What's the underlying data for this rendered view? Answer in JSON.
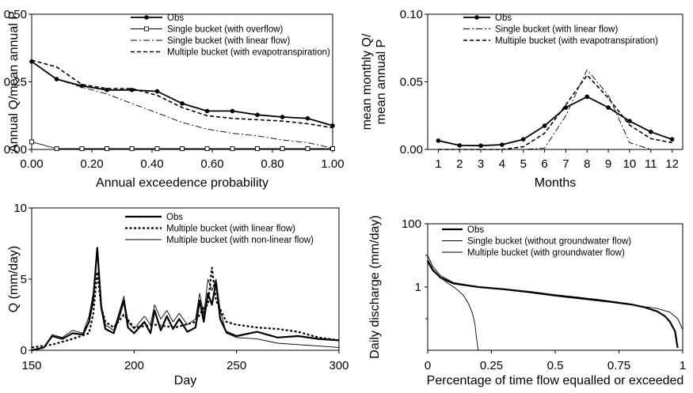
{
  "chart_data": [
    {
      "type": "line",
      "xlabel": "Annual exceedence probability",
      "ylabel": "Annual Q/mean annual P",
      "xlim": [
        0,
        1
      ],
      "ylim": [
        0,
        0.5
      ],
      "xticks": [
        "0.00",
        "0.20",
        "0.40",
        "0.60",
        "0.80",
        "1.00"
      ],
      "yticks": [
        "0.00",
        "0.25",
        "0.50"
      ],
      "legend_position": "top-right",
      "series": [
        {
          "name": "Obs",
          "style": "solid-thick-dots",
          "x": [
            0,
            0.083,
            0.167,
            0.25,
            0.333,
            0.417,
            0.5,
            0.583,
            0.667,
            0.75,
            0.833,
            0.917,
            1.0
          ],
          "y": [
            0.325,
            0.26,
            0.235,
            0.22,
            0.22,
            0.215,
            0.17,
            0.142,
            0.142,
            0.128,
            0.12,
            0.115,
            0.088
          ]
        },
        {
          "name": "Single bucket (with overflow)",
          "style": "solid-thin-squares",
          "x": [
            0,
            0.083,
            0.167,
            0.25,
            0.333,
            0.417,
            0.5,
            0.583,
            0.667,
            0.75,
            0.833,
            0.917,
            1.0
          ],
          "y": [
            0.028,
            0.003,
            0.003,
            0.003,
            0.003,
            0.003,
            0.003,
            0.003,
            0.003,
            0.003,
            0.003,
            0.003,
            0.003
          ]
        },
        {
          "name": "Single bucket (with linear flow)",
          "style": "dashdot",
          "x": [
            0,
            0.083,
            0.167,
            0.25,
            0.333,
            0.417,
            0.5,
            0.583,
            0.667,
            0.75,
            0.833,
            0.917,
            1.0
          ],
          "y": [
            0.325,
            0.26,
            0.23,
            0.205,
            0.17,
            0.135,
            0.1,
            0.075,
            0.06,
            0.05,
            0.035,
            0.025,
            0.005
          ]
        },
        {
          "name": "Multiple bucket (with evapotranspiration)",
          "style": "dashed",
          "x": [
            0,
            0.083,
            0.167,
            0.25,
            0.333,
            0.417,
            0.5,
            0.583,
            0.667,
            0.75,
            0.833,
            0.917,
            1.0
          ],
          "y": [
            0.33,
            0.305,
            0.24,
            0.225,
            0.225,
            0.2,
            0.155,
            0.125,
            0.115,
            0.11,
            0.105,
            0.095,
            0.08
          ]
        }
      ]
    },
    {
      "type": "line",
      "xlabel": "Months",
      "ylabel": "mean monthly Q/ mean annual P",
      "ylabel_lines": [
        "mean monthly Q/",
        "mean annual P"
      ],
      "xlim": [
        0.5,
        12.5
      ],
      "ylim": [
        0,
        0.1
      ],
      "xticks": [
        "1",
        "2",
        "3",
        "4",
        "5",
        "6",
        "7",
        "8",
        "9",
        "10",
        "11",
        "12"
      ],
      "yticks": [
        "0.00",
        "0.05",
        "0.10"
      ],
      "legend_position": "top-right",
      "series": [
        {
          "name": "Obs",
          "style": "solid-thick-dots",
          "x": [
            1,
            2,
            3,
            4,
            5,
            6,
            7,
            8,
            9,
            10,
            11,
            12
          ],
          "y": [
            0.0065,
            0.003,
            0.0028,
            0.0035,
            0.0075,
            0.0175,
            0.031,
            0.039,
            0.031,
            0.021,
            0.013,
            0.0075
          ]
        },
        {
          "name": "Single bucket (with linear flow)",
          "style": "dashdot",
          "x": [
            1,
            2,
            3,
            4,
            5,
            6,
            7,
            8,
            9,
            10,
            11,
            12
          ],
          "y": [
            0,
            0,
            0,
            0,
            0,
            0.001,
            0.025,
            0.059,
            0.04,
            0.005,
            0,
            0
          ]
        },
        {
          "name": "Multiple bucket (with evapotranspiration)",
          "style": "dashed",
          "x": [
            1,
            2,
            3,
            4,
            5,
            6,
            7,
            8,
            9,
            10,
            11,
            12
          ],
          "y": [
            0,
            0,
            0,
            0,
            0.002,
            0.012,
            0.033,
            0.055,
            0.038,
            0.018,
            0.008,
            0.005
          ]
        }
      ]
    },
    {
      "type": "line",
      "xlabel": "Day",
      "ylabel": "Q (mm/day)",
      "xlim": [
        150,
        300
      ],
      "ylim": [
        0,
        10
      ],
      "xticks": [
        "150",
        "200",
        "250",
        "300"
      ],
      "yticks": [
        "0",
        "5",
        "10"
      ],
      "legend_position": "top-right",
      "series": [
        {
          "name": "Obs",
          "style": "solid-thick",
          "x": [
            150,
            156,
            160,
            165,
            170,
            175,
            178,
            180,
            182,
            184,
            186,
            190,
            193,
            195,
            197,
            200,
            205,
            208,
            210,
            213,
            216,
            219,
            222,
            226,
            230,
            232,
            234,
            236,
            238,
            240,
            242,
            245,
            250,
            260,
            270,
            280,
            290,
            300
          ],
          "y": [
            0,
            0.2,
            1,
            0.8,
            1.2,
            1.1,
            2.0,
            3.5,
            7.2,
            3.0,
            1.5,
            1.2,
            2.5,
            3.5,
            1.6,
            1.2,
            2.0,
            1.2,
            2.8,
            1.4,
            2.4,
            1.5,
            2.2,
            1.3,
            1.6,
            3.5,
            2.0,
            4.0,
            3.2,
            4.8,
            2.2,
            1.3,
            1.0,
            1.3,
            0.9,
            1.0,
            0.8,
            0.7
          ]
        },
        {
          "name": "Multiple bucket (with linear flow)",
          "style": "dotted-thick",
          "x": [
            150,
            160,
            170,
            178,
            180,
            182,
            184,
            186,
            190,
            195,
            200,
            210,
            220,
            230,
            234,
            236,
            238,
            240,
            245,
            250,
            260,
            270,
            280,
            290,
            300
          ],
          "y": [
            0.2,
            0.4,
            0.8,
            1.2,
            2.5,
            5.5,
            3.0,
            2.0,
            1.6,
            2.5,
            1.6,
            1.8,
            1.6,
            2.0,
            3.0,
            3.2,
            5.8,
            3.5,
            2.0,
            1.8,
            1.6,
            1.5,
            1.3,
            0.9,
            0.7
          ]
        },
        {
          "name": "Multiple bucket (with non-linear flow)",
          "style": "solid-thin",
          "x": [
            150,
            156,
            160,
            165,
            170,
            175,
            178,
            180,
            182,
            184,
            186,
            190,
            193,
            195,
            197,
            200,
            205,
            208,
            210,
            213,
            216,
            219,
            222,
            226,
            230,
            232,
            234,
            236,
            238,
            240,
            242,
            245,
            250,
            260,
            270,
            280,
            290,
            300
          ],
          "y": [
            0,
            0.2,
            1.1,
            0.9,
            1.4,
            1.2,
            2.4,
            4.0,
            7.0,
            3.2,
            1.8,
            1.4,
            2.8,
            3.8,
            2.0,
            1.5,
            2.4,
            1.8,
            3.2,
            2.2,
            2.8,
            2.0,
            2.6,
            1.8,
            2.2,
            4.0,
            2.5,
            5.0,
            4.2,
            5.0,
            2.8,
            1.2,
            0.9,
            0.8,
            0.5,
            0.4,
            0.3,
            0.2
          ]
        }
      ]
    },
    {
      "type": "line",
      "xlabel": "Percentage of time flow equalled or exceeded",
      "ylabel": "Daily discharge (mm/day)",
      "xlim": [
        0,
        1
      ],
      "ylim": [
        0.01,
        100
      ],
      "yscale": "log",
      "xticks": [
        "0",
        "0.25",
        "0.5",
        "0.75",
        "1"
      ],
      "yticks": [
        "1",
        "100"
      ],
      "legend_position": "top-right",
      "series": [
        {
          "name": "Obs",
          "style": "solid-thick",
          "x": [
            0,
            0.02,
            0.05,
            0.1,
            0.2,
            0.3,
            0.4,
            0.5,
            0.6,
            0.7,
            0.8,
            0.85,
            0.9,
            0.93,
            0.95,
            0.97,
            0.98
          ],
          "y": [
            7,
            3.5,
            2,
            1.3,
            1.0,
            0.85,
            0.7,
            0.55,
            0.45,
            0.36,
            0.28,
            0.23,
            0.17,
            0.12,
            0.08,
            0.04,
            0.012
          ]
        },
        {
          "name": "Single bucket (without groundwater flow)",
          "style": "solid-thin",
          "x": [
            0,
            0.02,
            0.05,
            0.08,
            0.11,
            0.14,
            0.16,
            0.175,
            0.185,
            0.19,
            0.195,
            0.198
          ],
          "y": [
            6,
            3.2,
            2.0,
            1.3,
            0.9,
            0.55,
            0.3,
            0.15,
            0.07,
            0.03,
            0.015,
            0.01
          ]
        },
        {
          "name": "Multiple bucket (with groundwater flow)",
          "style": "solid-thin",
          "x": [
            0,
            0.02,
            0.05,
            0.1,
            0.2,
            0.3,
            0.4,
            0.5,
            0.6,
            0.7,
            0.8,
            0.9,
            0.95,
            0.98,
            1.0
          ],
          "y": [
            10,
            4.5,
            2.3,
            1.4,
            1.0,
            0.82,
            0.66,
            0.52,
            0.42,
            0.34,
            0.27,
            0.21,
            0.16,
            0.1,
            0.045
          ]
        }
      ]
    }
  ]
}
